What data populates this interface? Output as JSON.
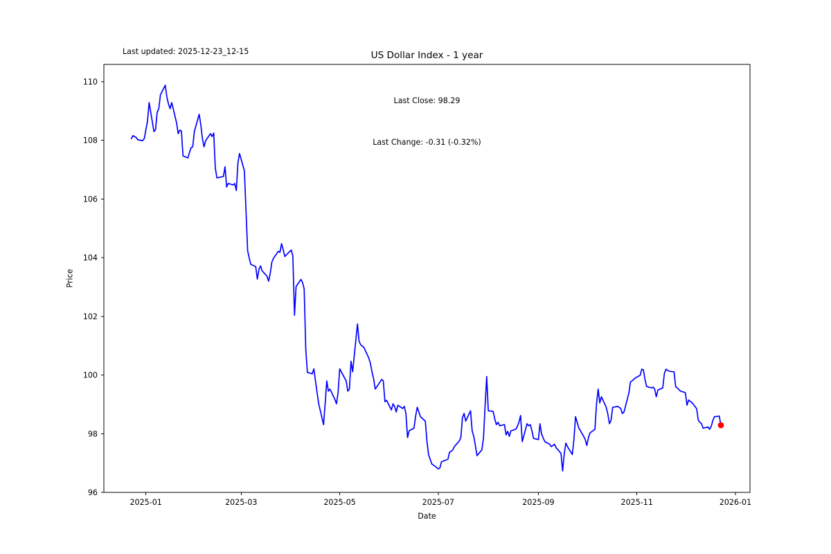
{
  "header": {
    "last_updated": "Last updated: 2025-12-23_12-15"
  },
  "annotation": {
    "line1": "Last Close: 98.29",
    "line2": "Last Change: -0.31 (-0.32%)"
  },
  "chart_data": {
    "type": "line",
    "title": "US Dollar Index - 1 year",
    "xlabel": "Date",
    "ylabel": "Price",
    "grid": false,
    "legend": "none",
    "xlim": [
      "2024-12-06",
      "2026-01-10"
    ],
    "ylim": [
      96.0,
      110.59
    ],
    "y_ticks": [
      96,
      98,
      100,
      102,
      104,
      106,
      108,
      110
    ],
    "x_ticks": [
      {
        "label": "2025-01",
        "date": "2025-01-01"
      },
      {
        "label": "2025-03",
        "date": "2025-03-01"
      },
      {
        "label": "2025-05",
        "date": "2025-05-01"
      },
      {
        "label": "2025-07",
        "date": "2025-07-01"
      },
      {
        "label": "2025-09",
        "date": "2025-09-01"
      },
      {
        "label": "2025-11",
        "date": "2025-11-01"
      },
      {
        "label": "2026-01",
        "date": "2026-01-01"
      }
    ],
    "line_color": "#0000ff",
    "marker_color": "#ff0000",
    "last_close": 98.29,
    "last_change": -0.31,
    "last_change_pct": -0.32,
    "series": [
      {
        "name": "US Dollar Index close",
        "points": [
          [
            "2024-12-23",
            108.06
          ],
          [
            "2024-12-24",
            108.16
          ],
          [
            "2024-12-26",
            108.1
          ],
          [
            "2024-12-27",
            108.02
          ],
          [
            "2024-12-30",
            107.99
          ],
          [
            "2024-12-31",
            108.06
          ],
          [
            "2025-01-02",
            108.65
          ],
          [
            "2025-01-03",
            109.29
          ],
          [
            "2025-01-06",
            108.3
          ],
          [
            "2025-01-07",
            108.37
          ],
          [
            "2025-01-08",
            108.96
          ],
          [
            "2025-01-09",
            109.08
          ],
          [
            "2025-01-10",
            109.55
          ],
          [
            "2025-01-13",
            109.88
          ],
          [
            "2025-01-14",
            109.48
          ],
          [
            "2025-01-15",
            109.24
          ],
          [
            "2025-01-16",
            109.08
          ],
          [
            "2025-01-17",
            109.29
          ],
          [
            "2025-01-20",
            108.6
          ],
          [
            "2025-01-21",
            108.23
          ],
          [
            "2025-01-22",
            108.35
          ],
          [
            "2025-01-23",
            108.32
          ],
          [
            "2025-01-24",
            107.47
          ],
          [
            "2025-01-27",
            107.4
          ],
          [
            "2025-01-28",
            107.59
          ],
          [
            "2025-01-29",
            107.75
          ],
          [
            "2025-01-30",
            107.78
          ],
          [
            "2025-01-31",
            108.3
          ],
          [
            "2025-02-03",
            108.89
          ],
          [
            "2025-02-04",
            108.54
          ],
          [
            "2025-02-05",
            108.06
          ],
          [
            "2025-02-06",
            107.78
          ],
          [
            "2025-02-07",
            107.99
          ],
          [
            "2025-02-10",
            108.23
          ],
          [
            "2025-02-11",
            108.13
          ],
          [
            "2025-02-12",
            108.25
          ],
          [
            "2025-02-13",
            107.05
          ],
          [
            "2025-02-14",
            106.72
          ],
          [
            "2025-02-18",
            106.77
          ],
          [
            "2025-02-19",
            107.1
          ],
          [
            "2025-02-20",
            106.41
          ],
          [
            "2025-02-21",
            106.53
          ],
          [
            "2025-02-24",
            106.48
          ],
          [
            "2025-02-25",
            106.53
          ],
          [
            "2025-02-26",
            106.29
          ],
          [
            "2025-02-27",
            107.24
          ],
          [
            "2025-02-28",
            107.55
          ],
          [
            "2025-03-03",
            106.96
          ],
          [
            "2025-03-04",
            105.6
          ],
          [
            "2025-03-05",
            104.24
          ],
          [
            "2025-03-06",
            103.98
          ],
          [
            "2025-03-07",
            103.77
          ],
          [
            "2025-03-10",
            103.7
          ],
          [
            "2025-03-11",
            103.27
          ],
          [
            "2025-03-12",
            103.6
          ],
          [
            "2025-03-13",
            103.72
          ],
          [
            "2025-03-14",
            103.55
          ],
          [
            "2025-03-17",
            103.37
          ],
          [
            "2025-03-18",
            103.2
          ],
          [
            "2025-03-19",
            103.47
          ],
          [
            "2025-03-20",
            103.85
          ],
          [
            "2025-03-21",
            103.98
          ],
          [
            "2025-03-24",
            104.22
          ],
          [
            "2025-03-25",
            104.18
          ],
          [
            "2025-03-26",
            104.48
          ],
          [
            "2025-03-27",
            104.28
          ],
          [
            "2025-03-28",
            104.04
          ],
          [
            "2025-03-31",
            104.21
          ],
          [
            "2025-04-01",
            104.26
          ],
          [
            "2025-04-02",
            104.06
          ],
          [
            "2025-04-03",
            102.04
          ],
          [
            "2025-04-04",
            103.02
          ],
          [
            "2025-04-07",
            103.26
          ],
          [
            "2025-04-08",
            103.15
          ],
          [
            "2025-04-09",
            102.94
          ],
          [
            "2025-04-10",
            100.87
          ],
          [
            "2025-04-11",
            100.09
          ],
          [
            "2025-04-14",
            100.04
          ],
          [
            "2025-04-15",
            100.21
          ],
          [
            "2025-04-16",
            99.8
          ],
          [
            "2025-04-17",
            99.4
          ],
          [
            "2025-04-18",
            99.02
          ],
          [
            "2025-04-21",
            98.31
          ],
          [
            "2025-04-22",
            99.02
          ],
          [
            "2025-04-23",
            99.8
          ],
          [
            "2025-04-24",
            99.45
          ],
          [
            "2025-04-25",
            99.52
          ],
          [
            "2025-04-28",
            99.17
          ],
          [
            "2025-04-29",
            99.02
          ],
          [
            "2025-04-30",
            99.4
          ],
          [
            "2025-05-01",
            100.21
          ],
          [
            "2025-05-02",
            100.11
          ],
          [
            "2025-05-05",
            99.8
          ],
          [
            "2025-05-06",
            99.45
          ],
          [
            "2025-05-07",
            99.52
          ],
          [
            "2025-05-08",
            100.47
          ],
          [
            "2025-05-09",
            100.11
          ],
          [
            "2025-05-12",
            101.74
          ],
          [
            "2025-05-13",
            101.15
          ],
          [
            "2025-05-14",
            101.03
          ],
          [
            "2025-05-15",
            100.99
          ],
          [
            "2025-05-16",
            100.94
          ],
          [
            "2025-05-19",
            100.58
          ],
          [
            "2025-05-20",
            100.4
          ],
          [
            "2025-05-21",
            100.11
          ],
          [
            "2025-05-22",
            99.87
          ],
          [
            "2025-05-23",
            99.52
          ],
          [
            "2025-05-27",
            99.85
          ],
          [
            "2025-05-28",
            99.8
          ],
          [
            "2025-05-29",
            99.09
          ],
          [
            "2025-05-30",
            99.14
          ],
          [
            "2025-06-02",
            98.81
          ],
          [
            "2025-06-03",
            99.02
          ],
          [
            "2025-06-04",
            98.93
          ],
          [
            "2025-06-05",
            98.74
          ],
          [
            "2025-06-06",
            98.97
          ],
          [
            "2025-06-09",
            98.86
          ],
          [
            "2025-06-10",
            98.93
          ],
          [
            "2025-06-11",
            98.69
          ],
          [
            "2025-06-12",
            97.87
          ],
          [
            "2025-06-13",
            98.1
          ],
          [
            "2025-06-16",
            98.19
          ],
          [
            "2025-06-17",
            98.6
          ],
          [
            "2025-06-18",
            98.9
          ],
          [
            "2025-06-19",
            98.74
          ],
          [
            "2025-06-20",
            98.58
          ],
          [
            "2025-06-23",
            98.43
          ],
          [
            "2025-06-24",
            97.75
          ],
          [
            "2025-06-25",
            97.29
          ],
          [
            "2025-06-26",
            97.13
          ],
          [
            "2025-06-27",
            96.97
          ],
          [
            "2025-06-30",
            96.85
          ],
          [
            "2025-07-01",
            96.8
          ],
          [
            "2025-07-02",
            96.83
          ],
          [
            "2025-07-03",
            97.04
          ],
          [
            "2025-07-07",
            97.13
          ],
          [
            "2025-07-08",
            97.37
          ],
          [
            "2025-07-09",
            97.4
          ],
          [
            "2025-07-10",
            97.45
          ],
          [
            "2025-07-11",
            97.56
          ],
          [
            "2025-07-14",
            97.75
          ],
          [
            "2025-07-15",
            97.87
          ],
          [
            "2025-07-16",
            98.55
          ],
          [
            "2025-07-17",
            98.69
          ],
          [
            "2025-07-18",
            98.43
          ],
          [
            "2025-07-21",
            98.78
          ],
          [
            "2025-07-22",
            98.1
          ],
          [
            "2025-07-23",
            97.91
          ],
          [
            "2025-07-24",
            97.6
          ],
          [
            "2025-07-25",
            97.25
          ],
          [
            "2025-07-28",
            97.45
          ],
          [
            "2025-07-29",
            97.84
          ],
          [
            "2025-07-30",
            98.93
          ],
          [
            "2025-07-31",
            99.95
          ],
          [
            "2025-08-01",
            98.78
          ],
          [
            "2025-08-04",
            98.76
          ],
          [
            "2025-08-05",
            98.5
          ],
          [
            "2025-08-06",
            98.31
          ],
          [
            "2025-08-07",
            98.39
          ],
          [
            "2025-08-08",
            98.27
          ],
          [
            "2025-08-11",
            98.31
          ],
          [
            "2025-08-12",
            97.96
          ],
          [
            "2025-08-13",
            98.08
          ],
          [
            "2025-08-14",
            97.91
          ],
          [
            "2025-08-15",
            98.1
          ],
          [
            "2025-08-18",
            98.15
          ],
          [
            "2025-08-19",
            98.25
          ],
          [
            "2025-08-20",
            98.4
          ],
          [
            "2025-08-21",
            98.62
          ],
          [
            "2025-08-22",
            97.73
          ],
          [
            "2025-08-25",
            98.34
          ],
          [
            "2025-08-26",
            98.27
          ],
          [
            "2025-08-27",
            98.31
          ],
          [
            "2025-08-28",
            98.1
          ],
          [
            "2025-08-29",
            97.84
          ],
          [
            "2025-09-01",
            97.8
          ],
          [
            "2025-09-02",
            98.34
          ],
          [
            "2025-09-03",
            97.98
          ],
          [
            "2025-09-04",
            97.85
          ],
          [
            "2025-09-05",
            97.73
          ],
          [
            "2025-09-08",
            97.64
          ],
          [
            "2025-09-09",
            97.56
          ],
          [
            "2025-09-10",
            97.6
          ],
          [
            "2025-09-11",
            97.64
          ],
          [
            "2025-09-12",
            97.52
          ],
          [
            "2025-09-15",
            97.33
          ],
          [
            "2025-09-16",
            96.73
          ],
          [
            "2025-09-17",
            97.3
          ],
          [
            "2025-09-18",
            97.68
          ],
          [
            "2025-09-19",
            97.56
          ],
          [
            "2025-09-22",
            97.29
          ],
          [
            "2025-09-23",
            97.8
          ],
          [
            "2025-09-24",
            98.58
          ],
          [
            "2025-09-25",
            98.39
          ],
          [
            "2025-09-26",
            98.2
          ],
          [
            "2025-09-29",
            97.91
          ],
          [
            "2025-09-30",
            97.8
          ],
          [
            "2025-10-01",
            97.6
          ],
          [
            "2025-10-02",
            97.87
          ],
          [
            "2025-10-03",
            98.03
          ],
          [
            "2025-10-06",
            98.15
          ],
          [
            "2025-10-07",
            99.02
          ],
          [
            "2025-10-08",
            99.52
          ],
          [
            "2025-10-09",
            99.05
          ],
          [
            "2025-10-10",
            99.26
          ],
          [
            "2025-10-13",
            98.9
          ],
          [
            "2025-10-14",
            98.67
          ],
          [
            "2025-10-15",
            98.34
          ],
          [
            "2025-10-16",
            98.46
          ],
          [
            "2025-10-17",
            98.9
          ],
          [
            "2025-10-20",
            98.93
          ],
          [
            "2025-10-21",
            98.9
          ],
          [
            "2025-10-22",
            98.86
          ],
          [
            "2025-10-23",
            98.69
          ],
          [
            "2025-10-24",
            98.74
          ],
          [
            "2025-10-27",
            99.38
          ],
          [
            "2025-10-28",
            99.76
          ],
          [
            "2025-10-29",
            99.8
          ],
          [
            "2025-10-30",
            99.85
          ],
          [
            "2025-10-31",
            99.9
          ],
          [
            "2025-11-03",
            99.99
          ],
          [
            "2025-11-04",
            100.2
          ],
          [
            "2025-11-05",
            100.18
          ],
          [
            "2025-11-06",
            99.85
          ],
          [
            "2025-11-07",
            99.61
          ],
          [
            "2025-11-10",
            99.56
          ],
          [
            "2025-11-11",
            99.59
          ],
          [
            "2025-11-12",
            99.52
          ],
          [
            "2025-11-13",
            99.26
          ],
          [
            "2025-11-14",
            99.49
          ],
          [
            "2025-11-17",
            99.56
          ],
          [
            "2025-11-18",
            100.05
          ],
          [
            "2025-11-19",
            100.2
          ],
          [
            "2025-11-20",
            100.16
          ],
          [
            "2025-11-21",
            100.13
          ],
          [
            "2025-11-24",
            100.11
          ],
          [
            "2025-11-25",
            99.6
          ],
          [
            "2025-11-26",
            99.56
          ],
          [
            "2025-11-28",
            99.45
          ],
          [
            "2025-12-01",
            99.4
          ],
          [
            "2025-12-02",
            98.97
          ],
          [
            "2025-12-03",
            99.15
          ],
          [
            "2025-12-04",
            99.1
          ],
          [
            "2025-12-05",
            99.07
          ],
          [
            "2025-12-08",
            98.85
          ],
          [
            "2025-12-09",
            98.46
          ],
          [
            "2025-12-10",
            98.39
          ],
          [
            "2025-12-11",
            98.34
          ],
          [
            "2025-12-12",
            98.19
          ],
          [
            "2025-12-15",
            98.23
          ],
          [
            "2025-12-16",
            98.15
          ],
          [
            "2025-12-17",
            98.25
          ],
          [
            "2025-12-18",
            98.45
          ],
          [
            "2025-12-19",
            98.58
          ],
          [
            "2025-12-22",
            98.6
          ],
          [
            "2025-12-23",
            98.29
          ]
        ]
      }
    ]
  }
}
